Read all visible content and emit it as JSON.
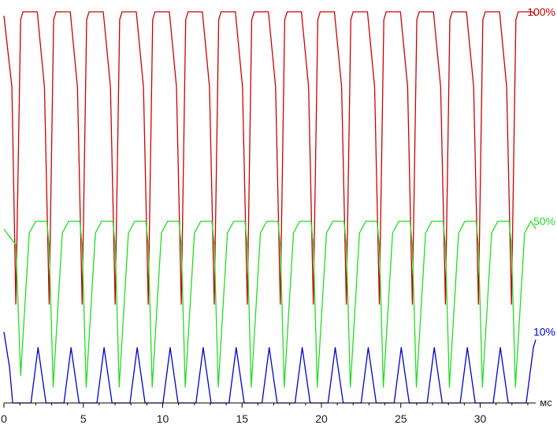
{
  "chart_data": {
    "type": "line",
    "xlabel": "мс",
    "xlim": [
      0,
      33.5
    ],
    "ylim": [
      0,
      100
    ],
    "x_ticks": [
      0,
      5,
      10,
      15,
      20,
      25,
      30
    ],
    "grid": false,
    "legend": "inline-right",
    "period_ms": 2.08,
    "series": [
      {
        "name": "100%",
        "color": "#cc0000",
        "high_level": 99,
        "low_level": 25,
        "points": [
          {
            "x": 0.0,
            "y": 98
          },
          {
            "x": 0.5,
            "y": 80
          },
          {
            "x": 0.75,
            "y": 25
          },
          {
            "x": 1.05,
            "y": 97
          },
          {
            "x": 1.2,
            "y": 99
          },
          {
            "x": 2.1,
            "y": 99
          },
          {
            "x": 2.55,
            "y": 80
          },
          {
            "x": 2.85,
            "y": 25
          },
          {
            "x": 3.3,
            "y": 94
          },
          {
            "x": 4.0,
            "y": 99
          },
          {
            "x": 33.5,
            "y": 98
          }
        ]
      },
      {
        "name": "50%",
        "color": "#22dd22",
        "high_level": 46,
        "low_level": 7,
        "points": [
          {
            "x": 0.0,
            "y": 44
          },
          {
            "x": 0.75,
            "y": 40
          },
          {
            "x": 1.05,
            "y": 7
          },
          {
            "x": 1.6,
            "y": 43
          },
          {
            "x": 2.0,
            "y": 46
          },
          {
            "x": 2.7,
            "y": 46
          },
          {
            "x": 2.85,
            "y": 40
          },
          {
            "x": 3.1,
            "y": 4
          },
          {
            "x": 3.7,
            "y": 42
          },
          {
            "x": 33.5,
            "y": 44
          }
        ]
      },
      {
        "name": "10%",
        "color": "#0000cc",
        "high_level": 18,
        "low_level": 0,
        "points": [
          {
            "x": 0.0,
            "y": 18
          },
          {
            "x": 0.35,
            "y": 9
          },
          {
            "x": 0.55,
            "y": 0
          },
          {
            "x": 1.7,
            "y": 0
          },
          {
            "x": 2.15,
            "y": 14
          },
          {
            "x": 2.65,
            "y": 0
          },
          {
            "x": 3.8,
            "y": 0
          },
          {
            "x": 4.2,
            "y": 18
          },
          {
            "x": 4.75,
            "y": 0
          },
          {
            "x": 33.5,
            "y": 16
          }
        ]
      }
    ]
  }
}
